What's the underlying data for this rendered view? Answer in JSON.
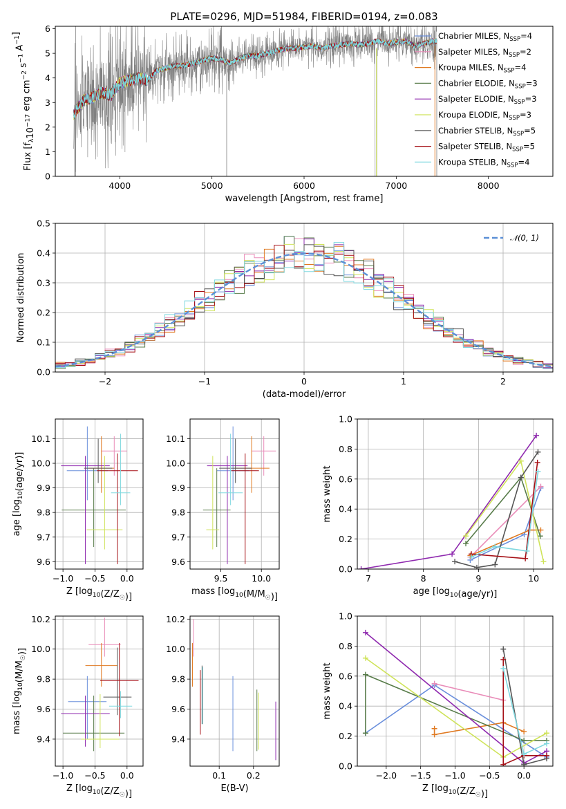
{
  "title": "PLATE=0296, MJD=51984, FIBERID=0194, z=0.083",
  "models": [
    {
      "name": "Chabrier MILES, N$_{SSP}$=4",
      "main": "Chabrier MILES, N",
      "sub": "SSP",
      "tail": "=4",
      "color": "#6a8fdc"
    },
    {
      "name": "Salpeter MILES, N$_{SSP}$=2",
      "main": "Salpeter MILES, N",
      "sub": "SSP",
      "tail": "=2",
      "color": "#e98bb8"
    },
    {
      "name": "Kroupa MILES, N$_{SSP}$=4",
      "main": "Kroupa MILES, N",
      "sub": "SSP",
      "tail": "=4",
      "color": "#e07a22"
    },
    {
      "name": "Chabrier ELODIE, N$_{SSP}$=3",
      "main": "Chabrier ELODIE, N",
      "sub": "SSP",
      "tail": "=3",
      "color": "#587c4a"
    },
    {
      "name": "Salpeter ELODIE, N$_{SSP}$=3",
      "main": "Salpeter ELODIE, N",
      "sub": "SSP",
      "tail": "=3",
      "color": "#8f2aaf"
    },
    {
      "name": "Kroupa ELODIE, N$_{SSP}$=3",
      "main": "Kroupa ELODIE, N",
      "sub": "SSP",
      "tail": "=3",
      "color": "#cfe35a"
    },
    {
      "name": "Chabrier STELIB, N$_{SSP}$=5",
      "main": "Chabrier STELIB, N",
      "sub": "SSP",
      "tail": "=5",
      "color": "#555555"
    },
    {
      "name": "Salpeter STELIB, N$_{SSP}$=5",
      "main": "Salpeter STELIB, N",
      "sub": "SSP",
      "tail": "=5",
      "color": "#a50f15"
    },
    {
      "name": "Kroupa STELIB, N$_{SSP}$=4",
      "main": "Kroupa STELIB, N",
      "sub": "SSP",
      "tail": "=4",
      "color": "#7fd8df"
    }
  ],
  "chart_data": [
    {
      "type": "line",
      "id": "spectrum",
      "xlabel": "wavelength [Angstrom, rest frame]",
      "ylabel": "Flux [f$_\\lambda$10$^{-17}$ erg cm$^{-2}$ s$^{-1}$ A$^{-1}$]",
      "xlim": [
        3300,
        8700
      ],
      "ylim": [
        0,
        6.1
      ],
      "xticks": [
        4000,
        5000,
        6000,
        7000,
        8000
      ],
      "yticks": [
        0,
        1,
        2,
        3,
        4,
        5,
        6
      ],
      "data_color": "#808080",
      "continuum": {
        "x": [
          3500,
          3600,
          3700,
          3800,
          3900,
          4000,
          4100,
          4200,
          4300,
          4400,
          4500,
          4600,
          4700,
          4800,
          4900,
          5000,
          5100,
          5200,
          5300,
          5400,
          5500,
          5600,
          5700,
          5800,
          5900,
          6000,
          6100,
          6200,
          6300,
          6400,
          6500,
          6600,
          6700,
          6800,
          6900,
          7000,
          7100,
          7200,
          7300,
          7400,
          7500,
          7600,
          7700,
          7800,
          7900,
          8000,
          8100,
          8200,
          8300,
          8400
        ],
        "y": [
          2.5,
          3.1,
          3.2,
          3.4,
          3.3,
          3.8,
          3.9,
          4.0,
          3.9,
          4.3,
          4.4,
          4.5,
          4.5,
          4.6,
          4.7,
          4.8,
          4.75,
          4.6,
          4.8,
          4.9,
          4.9,
          5.0,
          5.1,
          5.2,
          5.2,
          5.25,
          5.3,
          5.2,
          5.3,
          5.35,
          5.4,
          5.35,
          5.4,
          5.5,
          5.4,
          5.45,
          5.5,
          5.3,
          5.4,
          5.5,
          5.5,
          5.5,
          5.6,
          5.6,
          5.6,
          5.5,
          5.5,
          5.6,
          5.6,
          5.6
        ]
      },
      "legend": "upper right"
    },
    {
      "type": "histogram",
      "id": "residuals",
      "xlabel": "(data-model)/error",
      "ylabel": "Normed distribution",
      "xlim": [
        -2.5,
        2.5
      ],
      "ylim": [
        0,
        0.5
      ],
      "xticks": [
        -2,
        -1,
        0,
        1,
        2
      ],
      "yticks": [
        0.0,
        0.1,
        0.2,
        0.3,
        0.4,
        0.5
      ],
      "bin_width": 0.1,
      "reference": {
        "label": "$\\mathcal{N}(0,1)$",
        "label_text": "𝒩(0, 1)",
        "color": "#5b8fd6",
        "style": "dashed"
      },
      "legend": "upper right"
    },
    {
      "type": "errorbar",
      "id": "age-vs-Z",
      "xlabel": "Z [log$_{10}$(Z/Z$_\\odot$)]",
      "ylabel": "age  [log$_{10}$(age/yr)]",
      "xlim": [
        -1.12,
        0.25
      ],
      "ylim": [
        9.57,
        10.18
      ],
      "xticks": [
        -1.0,
        -0.5,
        0.0
      ],
      "yticks": [
        9.6,
        9.7,
        9.8,
        9.9,
        10.0,
        10.1
      ],
      "points": [
        {
          "x": -0.62,
          "y": 9.97,
          "xerr": 0.32,
          "yerr": [
            0.12,
            0.18
          ]
        },
        {
          "x": -0.2,
          "y": 10.05,
          "xerr": 0.2,
          "yerr": [
            0.1,
            0.06
          ]
        },
        {
          "x": -0.4,
          "y": 9.98,
          "xerr": 0.2,
          "yerr": [
            0.1,
            0.13
          ]
        },
        {
          "x": -0.52,
          "y": 9.81,
          "xerr": 0.5,
          "yerr": [
            0.15,
            0.17
          ]
        },
        {
          "x": -0.65,
          "y": 9.99,
          "xerr": 0.38,
          "yerr": [
            0.4,
            0.04
          ]
        },
        {
          "x": -0.35,
          "y": 9.73,
          "xerr": 0.28,
          "yerr": [
            0.08,
            0.3
          ]
        },
        {
          "x": -0.45,
          "y": 9.98,
          "xerr": 0.22,
          "yerr": [
            0.06,
            0.12
          ]
        },
        {
          "x": -0.15,
          "y": 9.97,
          "xerr": 0.32,
          "yerr": [
            0.38,
            0.07
          ]
        },
        {
          "x": -0.1,
          "y": 9.88,
          "xerr": 0.15,
          "yerr": [
            0.05,
            0.24
          ]
        }
      ]
    },
    {
      "type": "errorbar",
      "id": "age-vs-mass",
      "xlabel": "mass [log$_{10}$(M/M$_\\odot$)]",
      "ylabel": "",
      "xlim": [
        9.12,
        10.22
      ],
      "ylim": [
        9.57,
        10.18
      ],
      "xticks": [
        9.5,
        10.0
      ],
      "yticks": [
        9.6,
        9.7,
        9.8,
        9.9,
        10.0,
        10.1
      ],
      "points": [
        {
          "x": 9.65,
          "y": 9.97,
          "xerr": 0.2,
          "yerr": [
            0.12,
            0.18
          ]
        },
        {
          "x": 10.03,
          "y": 10.05,
          "xerr": 0.15,
          "yerr": [
            0.1,
            0.06
          ]
        },
        {
          "x": 9.88,
          "y": 9.98,
          "xerr": 0.22,
          "yerr": [
            0.1,
            0.13
          ]
        },
        {
          "x": 9.45,
          "y": 9.81,
          "xerr": 0.17,
          "yerr": [
            0.15,
            0.17
          ]
        },
        {
          "x": 9.58,
          "y": 9.99,
          "xerr": 0.25,
          "yerr": [
            0.4,
            0.04
          ]
        },
        {
          "x": 9.4,
          "y": 9.73,
          "xerr": 0.08,
          "yerr": [
            0.08,
            0.3
          ]
        },
        {
          "x": 9.68,
          "y": 9.98,
          "xerr": 0.2,
          "yerr": [
            0.06,
            0.12
          ]
        },
        {
          "x": 9.8,
          "y": 9.97,
          "xerr": 0.17,
          "yerr": [
            0.38,
            0.07
          ]
        },
        {
          "x": 9.62,
          "y": 9.88,
          "xerr": 0.15,
          "yerr": [
            0.05,
            0.24
          ]
        }
      ]
    },
    {
      "type": "line",
      "id": "massweight-vs-age",
      "xlabel": "age  [log$_{10}$(age/yr)]",
      "ylabel": "mass weight",
      "xlim": [
        6.8,
        10.35
      ],
      "ylim": [
        0,
        1.0
      ],
      "xticks": [
        7,
        8,
        9,
        10
      ],
      "yticks": [
        0.0,
        0.2,
        0.4,
        0.6,
        0.8,
        1.0
      ],
      "series": [
        {
          "x": [
            8.85,
            9.83,
            10.13
          ],
          "y": [
            0.06,
            0.23,
            0.54
          ]
        },
        {
          "x": [
            8.85,
            10.13
          ],
          "y": [
            0.08,
            0.55
          ]
        },
        {
          "x": [
            8.85,
            9.93,
            10.13
          ],
          "y": [
            0.09,
            0.26,
            0.26
          ]
        },
        {
          "x": [
            8.77,
            9.77,
            10.12
          ],
          "y": [
            0.17,
            0.61,
            0.22
          ]
        },
        {
          "x": [
            6.87,
            8.52,
            10.05
          ],
          "y": [
            0.0,
            0.1,
            0.89
          ]
        },
        {
          "x": [
            8.77,
            9.77,
            10.18
          ],
          "y": [
            0.22,
            0.72,
            0.05
          ]
        },
        {
          "x": [
            8.57,
            8.97,
            9.3,
            9.77,
            10.08
          ],
          "y": [
            0.05,
            0.01,
            0.03,
            0.61,
            0.78
          ]
        },
        {
          "x": [
            8.87,
            9.85,
            10.07
          ],
          "y": [
            0.1,
            0.07,
            0.71
          ]
        },
        {
          "x": [
            8.87,
            9.3,
            9.88,
            10.08
          ],
          "y": [
            0.08,
            0.15,
            0.12,
            0.65
          ]
        }
      ]
    },
    {
      "type": "errorbar",
      "id": "mass-vs-Z",
      "xlabel": "Z [log$_{10}$(Z/Z$_\\odot$)]",
      "ylabel": "mass [log$_{10}$(M/M$_\\odot$)]",
      "xlim": [
        -1.12,
        0.25
      ],
      "ylim": [
        9.22,
        10.22
      ],
      "xticks": [
        -1.0,
        -0.5,
        0.0
      ],
      "yticks": [
        9.4,
        9.6,
        9.8,
        10.0,
        10.2
      ],
      "points": [
        {
          "x": -0.62,
          "y": 9.65,
          "xerr": 0.3,
          "yerr": [
            0.25,
            0.17
          ]
        },
        {
          "x": -0.35,
          "y": 10.03,
          "xerr": 0.25,
          "yerr": [
            0.08,
            0.18
          ]
        },
        {
          "x": -0.4,
          "y": 9.89,
          "xerr": 0.25,
          "yerr": [
            0.14,
            0.15
          ]
        },
        {
          "x": -0.52,
          "y": 9.44,
          "xerr": 0.48,
          "yerr": [
            0.12,
            0.25
          ]
        },
        {
          "x": -0.65,
          "y": 9.57,
          "xerr": 0.38,
          "yerr": [
            0.22,
            0.12
          ]
        },
        {
          "x": -0.42,
          "y": 9.4,
          "xerr": 0.3,
          "yerr": [
            0.06,
            0.3
          ]
        },
        {
          "x": -0.15,
          "y": 9.68,
          "xerr": 0.22,
          "yerr": [
            0.12,
            0.33
          ]
        },
        {
          "x": -0.12,
          "y": 9.79,
          "xerr": 0.3,
          "yerr": [
            0.37,
            0.25
          ]
        },
        {
          "x": -0.1,
          "y": 9.62,
          "xerr": 0.18,
          "yerr": [
            0.08,
            0.1
          ]
        }
      ]
    },
    {
      "type": "errorbar",
      "id": "mass-vs-EBV",
      "xlabel": "E(B-V)",
      "ylabel": "",
      "xlim": [
        0.015,
        0.275
      ],
      "ylim": [
        9.22,
        10.22
      ],
      "xticks": [
        0.1,
        0.2
      ],
      "yticks": [
        9.4,
        9.6,
        9.8,
        10.0,
        10.2
      ],
      "points": [
        {
          "x": 0.14,
          "y": 9.65,
          "xerr": 0.0,
          "yerr": [
            0.33,
            0.17
          ]
        },
        {
          "x": 0.025,
          "y": 10.03,
          "xerr": 0.0,
          "yerr": [
            0.08,
            0.17
          ]
        },
        {
          "x": 0.022,
          "y": 9.89,
          "xerr": 0.0,
          "yerr": [
            0.14,
            0.15
          ]
        },
        {
          "x": 0.21,
          "y": 9.54,
          "xerr": 0.0,
          "yerr": [
            0.22,
            0.19
          ]
        },
        {
          "x": 0.265,
          "y": 9.46,
          "xerr": 0.0,
          "yerr": [
            0.2,
            0.19
          ]
        },
        {
          "x": 0.215,
          "y": 9.52,
          "xerr": 0.0,
          "yerr": [
            0.19,
            0.19
          ]
        },
        {
          "x": 0.05,
          "y": 9.69,
          "xerr": 0.0,
          "yerr": [
            0.19,
            0.2
          ]
        },
        {
          "x": 0.045,
          "y": 9.66,
          "xerr": 0.0,
          "yerr": [
            0.23,
            0.2
          ]
        },
        {
          "x": 0.052,
          "y": 9.68,
          "xerr": 0.0,
          "yerr": [
            0.18,
            0.2
          ]
        }
      ]
    },
    {
      "type": "line",
      "id": "massweight-vs-Z",
      "xlabel": "Z [log$_{10}$(Z/Z$_\\odot$)]",
      "ylabel": "mass weight",
      "xlim": [
        -2.42,
        0.42
      ],
      "ylim": [
        0,
        1.0
      ],
      "xticks": [
        -2.0,
        -1.5,
        -1.0,
        -0.5,
        0.0
      ],
      "yticks": [
        0.0,
        0.2,
        0.4,
        0.6,
        0.8,
        1.0
      ],
      "series": [
        {
          "x": [
            -2.3,
            -1.3,
            0.33
          ],
          "y": [
            0.22,
            0.54,
            0.06
          ]
        },
        {
          "x": [
            -1.3,
            -0.3
          ],
          "y": [
            0.55,
            0.44
          ]
        },
        {
          "x": [
            -1.3,
            -1.3,
            -0.3,
            0.0
          ],
          "y": [
            0.25,
            0.21,
            0.29,
            0.23
          ]
        },
        {
          "x": [
            -2.3,
            -2.3,
            0.0,
            0.33
          ],
          "y": [
            0.22,
            0.61,
            0.17,
            0.17
          ]
        },
        {
          "x": [
            -2.3,
            0.0,
            0.33
          ],
          "y": [
            0.89,
            0.02,
            0.1
          ]
        },
        {
          "x": [
            -2.3,
            -0.3,
            0.33
          ],
          "y": [
            0.72,
            0.06,
            0.22
          ]
        },
        {
          "x": [
            -0.3,
            0.0,
            0.33
          ],
          "y": [
            0.78,
            0.01,
            0.05
          ]
        },
        {
          "x": [
            -0.3,
            -0.3,
            0.0,
            0.33
          ],
          "y": [
            0.71,
            0.01,
            0.07,
            0.07
          ]
        },
        {
          "x": [
            -0.3,
            0.0,
            0.33
          ],
          "y": [
            0.65,
            0.08,
            0.15
          ]
        }
      ]
    }
  ]
}
